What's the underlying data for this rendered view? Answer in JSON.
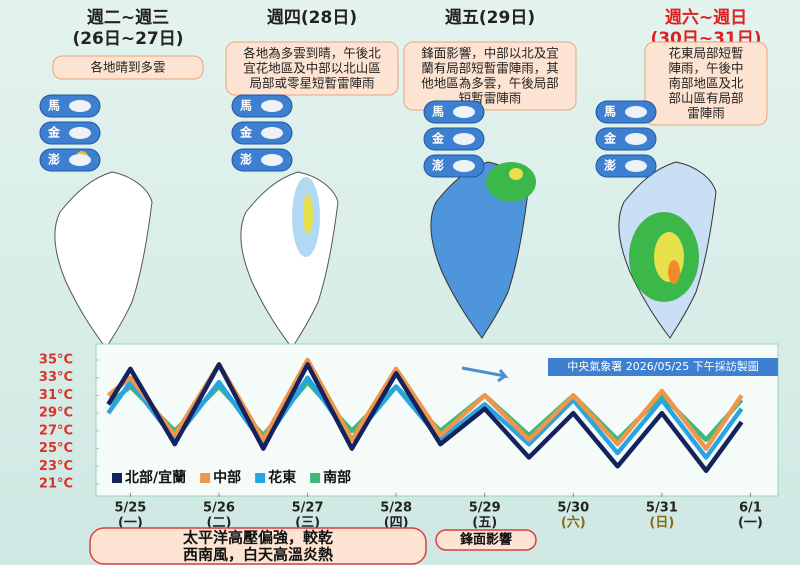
{
  "panels": [
    {
      "heading": [
        "週二~週三",
        "(26日~27日)"
      ],
      "forecast": [
        "各地晴到多雲"
      ]
    },
    {
      "heading": [
        "週四(28日)"
      ],
      "forecast": [
        "各地為多雲到晴，午後北",
        "宜花地區及中部以北山區",
        "局部或零星短暫雷陣雨"
      ]
    },
    {
      "heading": [
        "週五(29日)"
      ],
      "forecast": [
        "鋒面影響，中部以北及宜",
        "蘭有局部短暫雷陣雨，其",
        "他地區為多雲，午後局部",
        "短暫雷陣雨"
      ]
    },
    {
      "heading": [
        "週六~週日",
        "(30日~31日)"
      ],
      "forecast": [
        "花東局部短暫",
        "陣雨，午後中",
        "南部地區及北",
        "部山區有局部",
        "雷陣雨"
      ]
    }
  ],
  "islands": [
    "馬",
    "金",
    "澎"
  ],
  "chart_data": {
    "type": "line",
    "x": [
      -0.25,
      0,
      0.5,
      1,
      1.5,
      2,
      2.5,
      3,
      3.5,
      4,
      4.5,
      5,
      5.5,
      6,
      6.5,
      6.9
    ],
    "xlim": [
      -0.4,
      7.3
    ],
    "xticks": [
      {
        "value": 0,
        "label": "5/25"
      },
      {
        "value": 1,
        "label": "5/26"
      },
      {
        "value": 2,
        "label": "5/27"
      },
      {
        "value": 3,
        "label": "5/28"
      },
      {
        "value": 4,
        "label": "5/29"
      },
      {
        "value": 5,
        "label": "5/30"
      },
      {
        "value": 6,
        "label": "5/31"
      },
      {
        "value": 7,
        "label": "6/1"
      }
    ],
    "weekdays": [
      "(一)",
      "(二)",
      "(三)",
      "(四)",
      "(五)",
      "(六)",
      "(日)",
      "(一)"
    ],
    "ylim": [
      20,
      36.5
    ],
    "yticks": [
      {
        "value": 21,
        "label": "21°C"
      },
      {
        "value": 23,
        "label": "23°C"
      },
      {
        "value": 25,
        "label": "25°C"
      },
      {
        "value": 27,
        "label": "27°C"
      },
      {
        "value": 29,
        "label": "29°C"
      },
      {
        "value": 31,
        "label": "31°C"
      },
      {
        "value": 33,
        "label": "33°C"
      },
      {
        "value": 35,
        "label": "35°C"
      }
    ],
    "series": [
      {
        "name": "北部/宜蘭",
        "color": "#14235e",
        "values": [
          30,
          34,
          25.5,
          34.5,
          25,
          34.5,
          25,
          33.5,
          25.5,
          29.5,
          24,
          29,
          23,
          29,
          22.5,
          28
        ]
      },
      {
        "name": "中部",
        "color": "#f0964a",
        "values": [
          31,
          33,
          26.5,
          34.5,
          26,
          35,
          26,
          34,
          26.5,
          31,
          26,
          31,
          25.5,
          31.5,
          25,
          31
        ]
      },
      {
        "name": "花東",
        "color": "#2aa4e0",
        "values": [
          29,
          32.5,
          26,
          32.5,
          25.5,
          33,
          26,
          32,
          26,
          30,
          25.5,
          30.5,
          24.5,
          30.5,
          24,
          29.5
        ]
      },
      {
        "name": "南部",
        "color": "#3cb87a",
        "values": [
          30,
          32,
          27,
          32,
          26.5,
          32.5,
          27,
          32,
          27,
          31,
          26.5,
          31,
          26,
          31,
          26,
          30.5
        ]
      }
    ],
    "legend": "lower left",
    "annotation": "中央氣象署 2026/05/25 下午採訪製圖",
    "notes": [
      "太平洋高壓偏強，較乾",
      "西南風，白天高溫炎熱"
    ],
    "front_note": "鋒面影響"
  }
}
